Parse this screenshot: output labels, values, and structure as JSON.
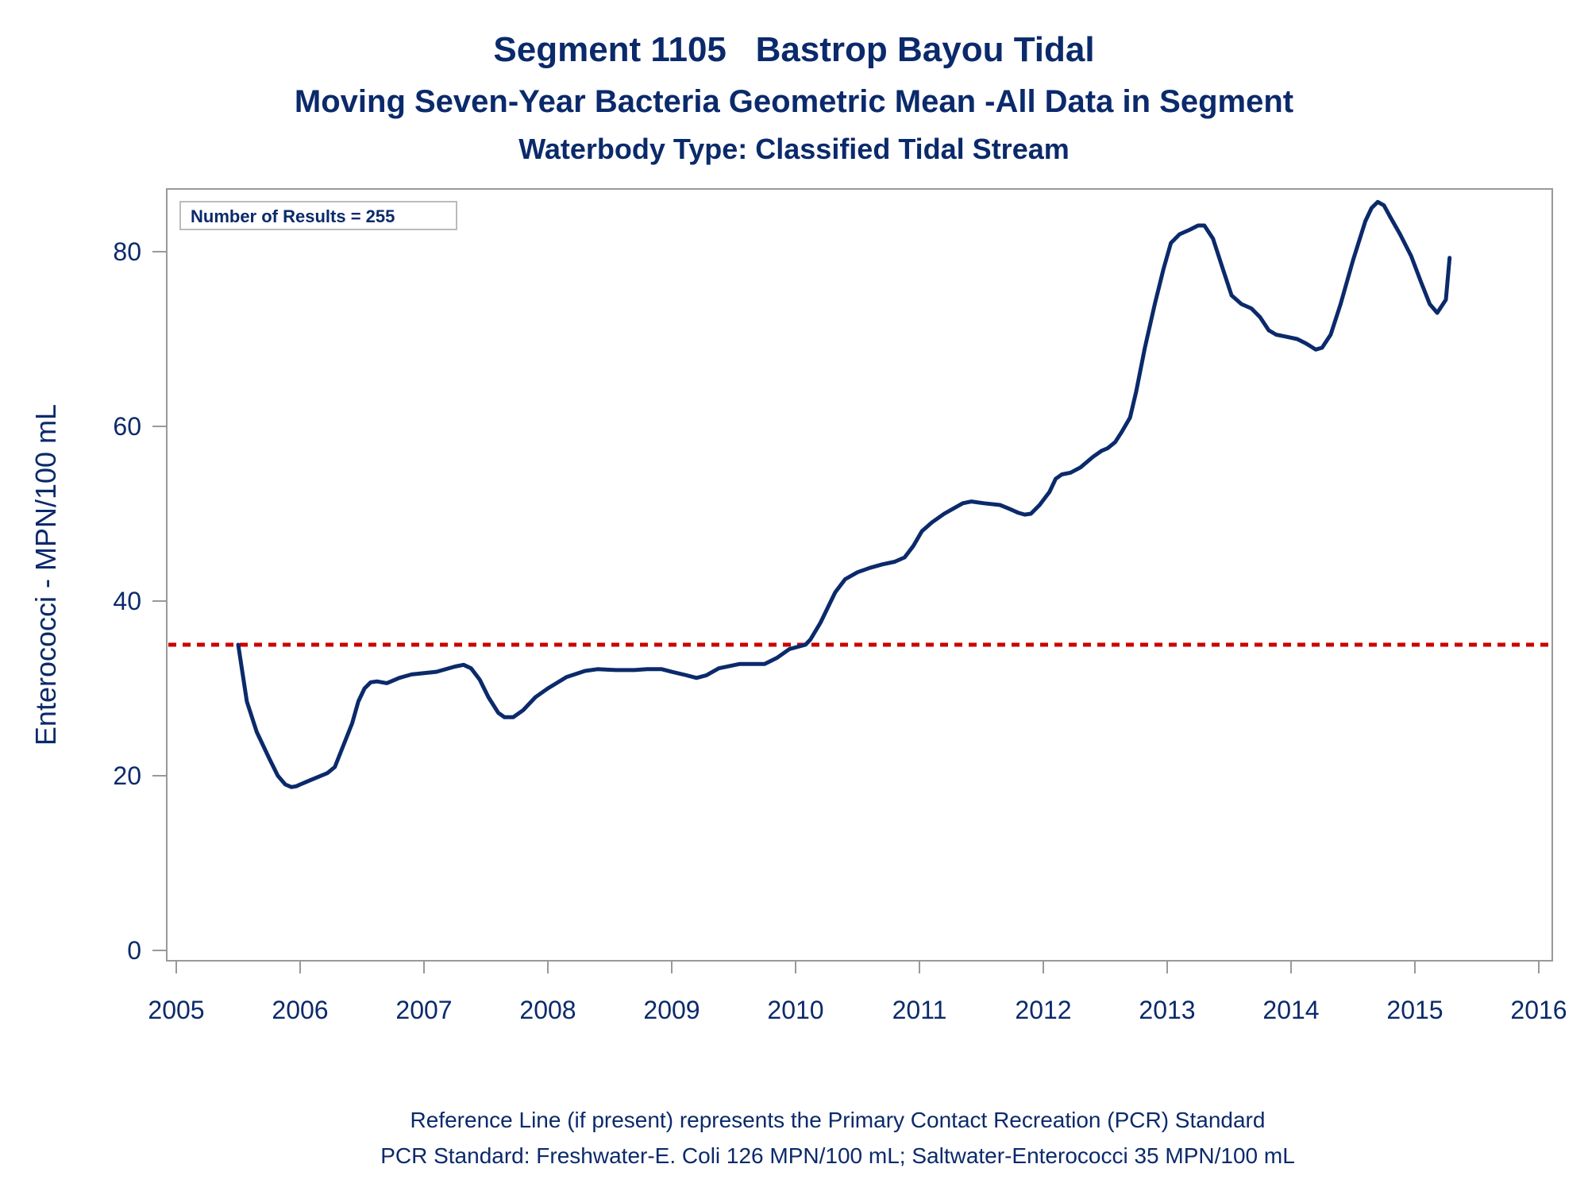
{
  "header": {
    "title": "Segment 1105   Bastrop Bayou Tidal",
    "subtitle": "Moving Seven-Year Bacteria Geometric Mean -All Data in Segment",
    "subtitle2": "Waterbody Type: Classified Tidal Stream"
  },
  "footer": {
    "line1": "Reference Line (if present) represents the Primary Contact Recreation (PCR) Standard",
    "line2": "PCR Standard: Freshwater-E. Coli 126 MPN/100 mL; Saltwater-Enterococci 35 MPN/100 mL"
  },
  "chart_data": {
    "type": "line",
    "ylabel": "Enterococci - MPN/100 mL",
    "xlabel": "",
    "annotation": "Number of Results = 255",
    "xlim": [
      2005,
      2016
    ],
    "ylim": [
      0,
      87
    ],
    "x_ticks": [
      2005,
      2006,
      2007,
      2008,
      2009,
      2010,
      2011,
      2012,
      2013,
      2014,
      2015,
      2016
    ],
    "y_ticks": [
      0,
      20,
      40,
      60,
      80
    ],
    "grid": false,
    "colors": {
      "series": "#0b2a6b",
      "reference": "#cc0000",
      "axes": "#999999",
      "text": "#0b2a6b"
    },
    "reference_line": {
      "y": 35,
      "style": "dotted",
      "color": "#cc0000"
    },
    "series": [
      {
        "x": [
          2005.5,
          2005.57,
          2005.65,
          2005.75,
          2005.82,
          2005.88,
          2005.93,
          2005.97,
          2006.0,
          2006.1,
          2006.22,
          2006.28,
          2006.35,
          2006.42,
          2006.47,
          2006.52,
          2006.57,
          2006.62,
          2006.7,
          2006.8,
          2006.9,
          2007.1,
          2007.25,
          2007.32,
          2007.38,
          2007.45,
          2007.52,
          2007.6,
          2007.65,
          2007.72,
          2007.8,
          2007.9,
          2008.0,
          2008.15,
          2008.3,
          2008.4,
          2008.55,
          2008.7,
          2008.8,
          2008.92,
          2009.0,
          2009.12,
          2009.2,
          2009.28,
          2009.38,
          2009.55,
          2009.65,
          2009.75,
          2009.85,
          2009.95,
          2010.08,
          2010.12,
          2010.2,
          2010.32,
          2010.4,
          2010.5,
          2010.6,
          2010.7,
          2010.8,
          2010.88,
          2010.95,
          2011.02,
          2011.1,
          2011.2,
          2011.3,
          2011.35,
          2011.42,
          2011.52,
          2011.65,
          2011.72,
          2011.8,
          2011.85,
          2011.9,
          2011.97,
          2012.05,
          2012.1,
          2012.15,
          2012.22,
          2012.3,
          2012.4,
          2012.47,
          2012.52,
          2012.58,
          2012.63,
          2012.7,
          2012.75,
          2012.82,
          2012.9,
          2012.97,
          2013.03,
          2013.1,
          2013.18,
          2013.25,
          2013.3,
          2013.37,
          2013.45,
          2013.52,
          2013.6,
          2013.68,
          2013.75,
          2013.82,
          2013.88,
          2013.95,
          2014.05,
          2014.12,
          2014.2,
          2014.25,
          2014.32,
          2014.4,
          2014.5,
          2014.6,
          2014.65,
          2014.7,
          2014.75,
          2014.8,
          2014.88,
          2014.97,
          2015.05,
          2015.12,
          2015.18,
          2015.25,
          2015.28
        ],
        "values": [
          35.0,
          28.5,
          25.0,
          22.0,
          20.0,
          19.0,
          18.7,
          18.8,
          19.0,
          19.6,
          20.3,
          21.0,
          23.5,
          26.0,
          28.5,
          30.0,
          30.7,
          30.8,
          30.6,
          31.2,
          31.6,
          31.9,
          32.5,
          32.7,
          32.3,
          31.0,
          29.0,
          27.2,
          26.7,
          26.7,
          27.5,
          29.0,
          30.0,
          31.3,
          32.0,
          32.2,
          32.1,
          32.1,
          32.2,
          32.2,
          31.9,
          31.5,
          31.2,
          31.5,
          32.3,
          32.8,
          32.8,
          32.8,
          33.5,
          34.5,
          35.0,
          35.6,
          37.5,
          41.0,
          42.5,
          43.3,
          43.8,
          44.2,
          44.5,
          45.0,
          46.3,
          48.0,
          49.0,
          50.0,
          50.8,
          51.2,
          51.4,
          51.2,
          51.0,
          50.6,
          50.1,
          49.9,
          50.0,
          51.0,
          52.5,
          54.0,
          54.5,
          54.7,
          55.3,
          56.5,
          57.2,
          57.5,
          58.2,
          59.3,
          61.0,
          64.0,
          69.0,
          74.0,
          78.0,
          81.0,
          82.0,
          82.5,
          83.0,
          83.0,
          81.5,
          78.0,
          75.0,
          74.0,
          73.5,
          72.5,
          71.0,
          70.5,
          70.3,
          70.0,
          69.5,
          68.8,
          69.0,
          70.5,
          74.0,
          79.0,
          83.5,
          85.0,
          85.7,
          85.3,
          84.0,
          82.0,
          79.5,
          76.5,
          74.0,
          73.0,
          74.5,
          79.3
        ]
      }
    ]
  }
}
